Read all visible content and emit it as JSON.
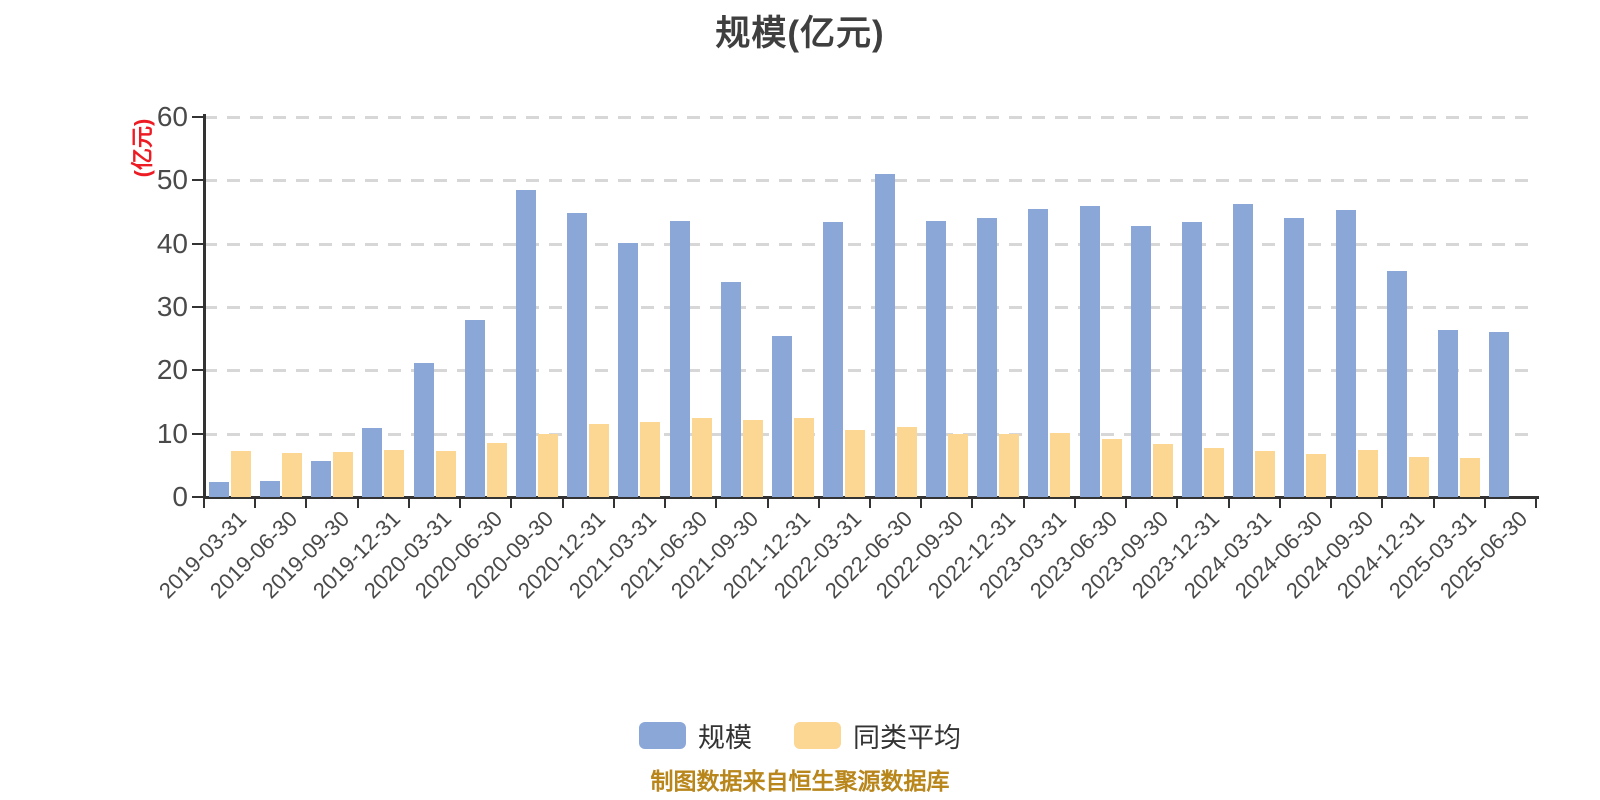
{
  "title": "规模(亿元)",
  "y_axis": {
    "unit_label": "(亿元)",
    "ticks": [
      0,
      10,
      20,
      30,
      40,
      50,
      60
    ],
    "min": 0,
    "max": 60
  },
  "legend": {
    "items": [
      "规模",
      "同类平均"
    ]
  },
  "footer": {
    "source_note": "制图数据来自恒生聚源数据库"
  },
  "colors": {
    "scale_series": "#8ba7d8",
    "average_series": "#fcd693",
    "grid": "#d7d7d7",
    "axis": "#333333",
    "tick_text": "#4a4a4a",
    "title_text": "#3f3f3f",
    "unit_text": "#ed1c24",
    "footer_text": "#b8861b"
  },
  "chart_data": {
    "type": "bar",
    "title": "规模(亿元)",
    "ylabel": "(亿元)",
    "xlabel": "",
    "ylim": [
      0,
      60
    ],
    "y_tick_step": 10,
    "grid": "dashed horizontal",
    "legend_position": "bottom",
    "categories": [
      "2019-03-31",
      "2019-06-30",
      "2019-09-30",
      "2019-12-31",
      "2020-03-31",
      "2020-06-30",
      "2020-09-30",
      "2020-12-31",
      "2021-03-31",
      "2021-06-30",
      "2021-09-30",
      "2021-12-31",
      "2022-03-31",
      "2022-06-30",
      "2022-09-30",
      "2022-12-31",
      "2023-03-31",
      "2023-06-30",
      "2023-09-30",
      "2023-12-31",
      "2024-03-31",
      "2024-06-30",
      "2024-09-30",
      "2024-12-31",
      "2025-03-31",
      "2025-06-30"
    ],
    "series": [
      {
        "name": "规模",
        "color": "#8ba7d8",
        "values": [
          2.4,
          2.5,
          5.7,
          10.9,
          21.2,
          28.0,
          48.4,
          44.8,
          40.1,
          43.6,
          34.0,
          25.4,
          43.5,
          51.0,
          43.6,
          44.0,
          45.5,
          46.0,
          42.8,
          43.4,
          46.3,
          44.1,
          45.3,
          35.7,
          26.4,
          26.1
        ]
      },
      {
        "name": "同类平均",
        "color": "#fcd693",
        "values": [
          7.3,
          6.9,
          7.1,
          7.4,
          7.3,
          8.5,
          10.0,
          11.5,
          11.8,
          12.4,
          12.2,
          12.5,
          10.6,
          11.1,
          9.9,
          9.9,
          10.1,
          9.2,
          8.4,
          7.8,
          7.3,
          6.8,
          7.4,
          6.3,
          6.2,
          null
        ]
      }
    ]
  }
}
